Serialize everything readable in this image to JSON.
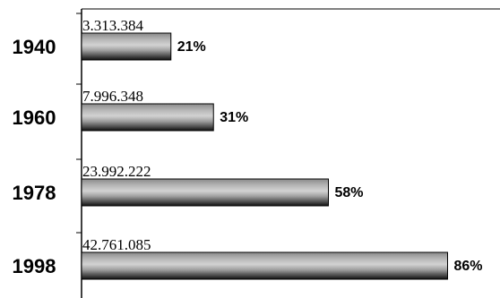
{
  "chart_data": {
    "type": "bar",
    "orientation": "horizontal",
    "categories": [
      "1940",
      "1960",
      "1978",
      "1998"
    ],
    "values": [
      3313384,
      7996348,
      23992222,
      42761085
    ],
    "value_labels": [
      "3.313.384",
      "7.996.348",
      "23.992.222",
      "42.761.085"
    ],
    "percentages": [
      21,
      31,
      58,
      86
    ],
    "percent_labels": [
      "21%",
      "31%",
      "58%",
      "86%"
    ],
    "xlim": [
      0,
      100
    ],
    "title": "",
    "xlabel": "",
    "ylabel": "",
    "grid": false,
    "legend": "none",
    "bar_style": "gray gradient with dark bottom edge"
  }
}
